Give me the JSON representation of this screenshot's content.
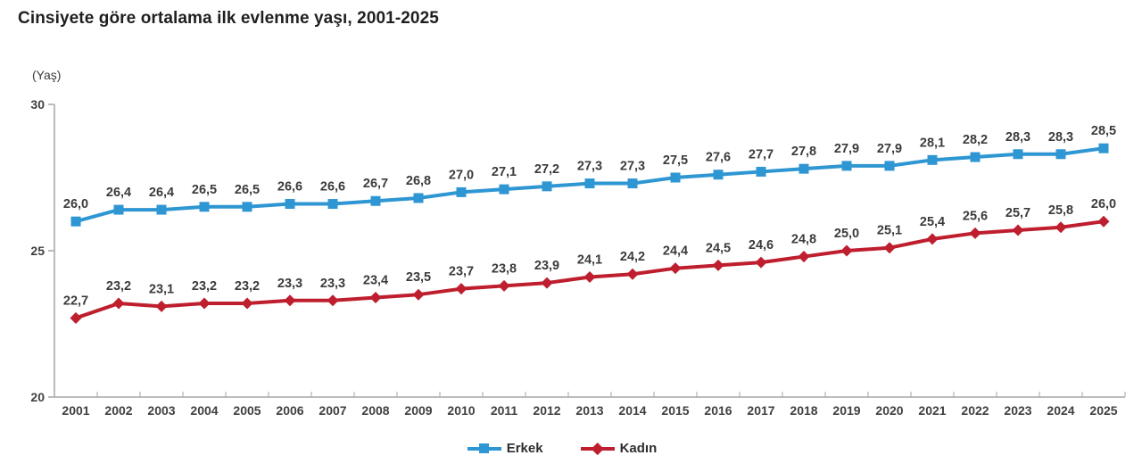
{
  "title": "Cinsiyete göre ortalama ilk evlenme yaşı, 2001-2025",
  "colors": {
    "erkek": "#2E96D2",
    "kadin": "#BE1E2D",
    "axis": "#A6A6A6",
    "tick_text": "#404040",
    "title_text": "#1F1F1F"
  },
  "chart_data": {
    "type": "line",
    "title": "Cinsiyete göre ortalama ilk evlenme yaşı, 2001-2025",
    "ylabel": "(Yaş)",
    "xlabel": "",
    "ylim": [
      20,
      30
    ],
    "yticks": [
      20,
      25,
      30
    ],
    "grid": false,
    "legend_position": "bottom",
    "decimal_separator": ",",
    "value_labels": true,
    "x": [
      2001,
      2002,
      2003,
      2004,
      2005,
      2006,
      2007,
      2008,
      2009,
      2010,
      2011,
      2012,
      2013,
      2014,
      2015,
      2016,
      2017,
      2018,
      2019,
      2020,
      2021,
      2022,
      2023,
      2024,
      2025
    ],
    "series": [
      {
        "name": "Erkek",
        "color": "#2E96D2",
        "marker": "square",
        "values": [
          26.0,
          26.4,
          26.4,
          26.5,
          26.5,
          26.6,
          26.6,
          26.7,
          26.8,
          27.0,
          27.1,
          27.2,
          27.3,
          27.3,
          27.5,
          27.6,
          27.7,
          27.8,
          27.9,
          27.9,
          28.1,
          28.2,
          28.3,
          28.3,
          28.5
        ]
      },
      {
        "name": "Kadın",
        "color": "#BE1E2D",
        "marker": "diamond",
        "values": [
          22.7,
          23.2,
          23.1,
          23.2,
          23.2,
          23.3,
          23.3,
          23.4,
          23.5,
          23.7,
          23.8,
          23.9,
          24.1,
          24.2,
          24.4,
          24.5,
          24.6,
          24.8,
          25.0,
          25.1,
          25.4,
          25.6,
          25.7,
          25.8,
          26.0
        ]
      }
    ]
  },
  "legend": {
    "items": [
      {
        "label": "Erkek",
        "marker": "square",
        "color": "#2E96D2"
      },
      {
        "label": "Kadın",
        "marker": "diamond",
        "color": "#BE1E2D"
      }
    ]
  }
}
